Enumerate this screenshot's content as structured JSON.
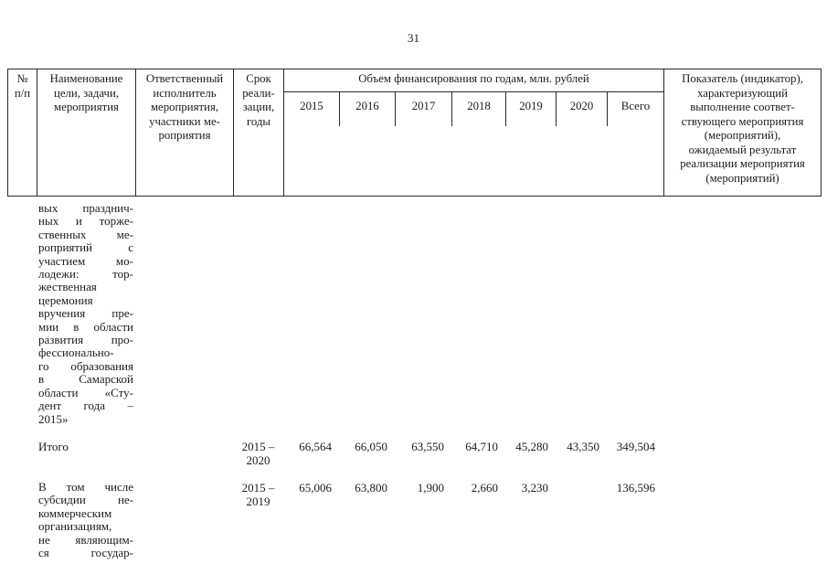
{
  "page": {
    "number": "31"
  },
  "table": {
    "header": {
      "num": "№\nп/п",
      "name": "Наименование\nцели, задачи,\nмероприятия",
      "executor": "Ответственный\nисполнитель\nмероприятия,\nучастники ме-\nроприятия",
      "term": "Срок\nреали-\nзации,\nгоды",
      "finance_title": "Объем финансирования по годам, млн. рублей",
      "years": [
        "2015",
        "2016",
        "2017",
        "2018",
        "2019",
        "2020",
        "Всего"
      ],
      "indicator": "Показатель (индикатор),\nхарактеризующий\nвыполнение соответ-\nствующего мероприятия\n(мероприятий),\nожидаемый результат\nреализации мероприятия\n(мероприятий)"
    },
    "rows": [
      {
        "name": "вых празднич-\nных и торже-\nственных ме-\nроприятий с\nучастием мо-\nлодежи: тор-\nжественная\nцеремония\nвручения пре-\nмии в области\nразвития про-\nфессионально-\nго образования\nв Самарской\nобласти «Сту-\nдент года –\n2015»",
        "term": "",
        "values": [
          "",
          "",
          "",
          "",
          "",
          "",
          ""
        ]
      },
      {
        "name": "Итого",
        "term": "2015 –\n2020",
        "values": [
          "66,564",
          "66,050",
          "63,550",
          "64,710",
          "45,280",
          "43,350",
          "349,504"
        ]
      },
      {
        "name": "В том числе\nсубсидии не-\nкоммерческим\nорганизациям,\nне являющим-\nся государ-",
        "term": "2015 –\n2019",
        "values": [
          "65,006",
          "63,800",
          "1,900",
          "2,660",
          "3,230",
          "",
          "136,596"
        ]
      }
    ]
  }
}
